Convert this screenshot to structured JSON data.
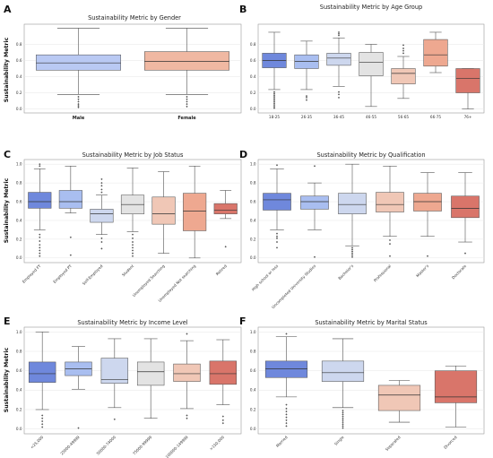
{
  "chart_data": [
    {
      "type": "box",
      "letter": "A",
      "title": "Sustainability Metric by Gender",
      "ylabel": "Sustainability Metric",
      "ylim": [
        0,
        1
      ],
      "yticks": [
        "0.0",
        "0.2",
        "0.4",
        "0.6",
        "0.8"
      ],
      "ytick_values": [
        0,
        0.2,
        0.4,
        0.6,
        0.8
      ],
      "label_style": "bold",
      "categories": [
        "Male",
        "Female"
      ],
      "boxes": [
        {
          "min": 0.18,
          "q1": 0.48,
          "median": 0.57,
          "q3": 0.67,
          "max": 1.0,
          "outliers": [
            0.02,
            0.04,
            0.06,
            0.09,
            0.12,
            0.15
          ],
          "color": "#b9c9f3"
        },
        {
          "min": 0.18,
          "q1": 0.48,
          "median": 0.59,
          "q3": 0.71,
          "max": 1.0,
          "outliers": [
            0.03,
            0.06,
            0.09,
            0.12,
            0.15
          ],
          "color": "#f0b8a2"
        }
      ]
    },
    {
      "type": "box",
      "letter": "B",
      "title": "Sustainability Metric by Age Group",
      "ylabel": "",
      "ylim": [
        0,
        1
      ],
      "yticks": [
        "0.0",
        "0.2",
        "0.4",
        "0.6",
        "0.8"
      ],
      "ytick_values": [
        0,
        0.2,
        0.4,
        0.6,
        0.8
      ],
      "label_style": "plain",
      "categories": [
        "18-25",
        "26-35",
        "36-45",
        "46-55",
        "56-65",
        "66-75",
        "76+"
      ],
      "boxes": [
        {
          "min": 0.24,
          "q1": 0.51,
          "median": 0.6,
          "q3": 0.69,
          "max": 0.95,
          "outliers": [
            0.01,
            0.03,
            0.05,
            0.07,
            0.09,
            0.11,
            0.13,
            0.15,
            0.17,
            0.19,
            0.21
          ],
          "color": "#6f88dc"
        },
        {
          "min": 0.24,
          "q1": 0.5,
          "median": 0.59,
          "q3": 0.67,
          "max": 0.84,
          "outliers": [
            0.11,
            0.14,
            0.16
          ],
          "color": "#a9bef0"
        },
        {
          "min": 0.28,
          "q1": 0.54,
          "median": 0.63,
          "q3": 0.69,
          "max": 0.88,
          "outliers": [
            0.14,
            0.18,
            0.21,
            0.91,
            0.93,
            0.95
          ],
          "color": "#cdd7ee"
        },
        {
          "min": 0.03,
          "q1": 0.41,
          "median": 0.58,
          "q3": 0.7,
          "max": 0.8,
          "outliers": [],
          "color": "#e3e3e3"
        },
        {
          "min": 0.13,
          "q1": 0.31,
          "median": 0.44,
          "q3": 0.5,
          "max": 0.65,
          "outliers": [
            0.69,
            0.72,
            0.75,
            0.79
          ],
          "color": "#f0c7b6"
        },
        {
          "min": 0.45,
          "q1": 0.53,
          "median": 0.67,
          "q3": 0.86,
          "max": 0.95,
          "outliers": [],
          "color": "#eea890"
        },
        {
          "min": 0.0,
          "q1": 0.2,
          "median": 0.38,
          "q3": 0.5,
          "max": 0.5,
          "outliers": [],
          "color": "#d9756a"
        }
      ]
    },
    {
      "type": "box",
      "letter": "C",
      "title": "Sustainability Metric by Job Status",
      "ylabel": "Sustainability Metric",
      "ylim": [
        0,
        1
      ],
      "yticks": [
        "0.0",
        "0.2",
        "0.4",
        "0.6",
        "0.8",
        "1.0"
      ],
      "ytick_values": [
        0,
        0.2,
        0.4,
        0.6,
        0.8,
        1.0
      ],
      "label_style": "rotated",
      "categories": [
        "Employed FT",
        "Employed PT",
        "Self-Employed",
        "Student",
        "Unemployed Searching",
        "Unemployed Not searching",
        "Retired"
      ],
      "boxes": [
        {
          "min": 0.3,
          "q1": 0.53,
          "median": 0.6,
          "q3": 0.7,
          "max": 0.95,
          "outliers": [
            0.02,
            0.05,
            0.08,
            0.11,
            0.14,
            0.18,
            0.22,
            0.25,
            0.98,
            1.0
          ],
          "color": "#6f88dc"
        },
        {
          "min": 0.48,
          "q1": 0.53,
          "median": 0.6,
          "q3": 0.72,
          "max": 0.98,
          "outliers": [
            0.03,
            0.22
          ],
          "color": "#a9bef0"
        },
        {
          "min": 0.25,
          "q1": 0.38,
          "median": 0.47,
          "q3": 0.52,
          "max": 0.67,
          "outliers": [
            0.1,
            0.17,
            0.21,
            0.7,
            0.73,
            0.77,
            0.8,
            0.84
          ],
          "color": "#cdd7ee"
        },
        {
          "min": 0.28,
          "q1": 0.47,
          "median": 0.57,
          "q3": 0.67,
          "max": 0.96,
          "outliers": [
            0.02,
            0.05,
            0.08,
            0.11,
            0.14,
            0.17,
            0.21,
            0.25
          ],
          "color": "#e3e3e3"
        },
        {
          "min": 0.05,
          "q1": 0.36,
          "median": 0.47,
          "q3": 0.65,
          "max": 0.92,
          "outliers": [],
          "color": "#f0c7b6"
        },
        {
          "min": 0.0,
          "q1": 0.29,
          "median": 0.5,
          "q3": 0.69,
          "max": 0.98,
          "outliers": [],
          "color": "#eea890"
        },
        {
          "min": 0.42,
          "q1": 0.47,
          "median": 0.51,
          "q3": 0.58,
          "max": 0.72,
          "outliers": [
            0.12
          ],
          "color": "#d9756a"
        }
      ]
    },
    {
      "type": "box",
      "letter": "D",
      "title": "Sustainability Metric by Qualification",
      "ylabel": "",
      "ylim": [
        0,
        1
      ],
      "yticks": [
        "0.0",
        "0.2",
        "0.4",
        "0.6",
        "0.8",
        "1.0"
      ],
      "ytick_values": [
        0,
        0.2,
        0.4,
        0.6,
        0.8,
        1.0
      ],
      "label_style": "rotated",
      "categories": [
        "High school or less",
        "Uncompleted University Studies",
        "Bachelor's",
        "Professional",
        "Master's",
        "Doctorate"
      ],
      "boxes": [
        {
          "min": 0.3,
          "q1": 0.51,
          "median": 0.62,
          "q3": 0.69,
          "max": 0.95,
          "outliers": [
            0.11,
            0.17,
            0.21,
            0.23,
            0.26,
            0.99
          ],
          "color": "#6f88dc"
        },
        {
          "min": 0.3,
          "q1": 0.52,
          "median": 0.6,
          "q3": 0.66,
          "max": 0.8,
          "outliers": [
            0.01,
            0.98
          ],
          "color": "#a9bef0"
        },
        {
          "min": 0.13,
          "q1": 0.47,
          "median": 0.57,
          "q3": 0.69,
          "max": 1.0,
          "outliers": [
            0.01,
            0.03,
            0.05,
            0.07,
            0.09,
            0.11
          ],
          "color": "#cdd7ee"
        },
        {
          "min": 0.23,
          "q1": 0.49,
          "median": 0.57,
          "q3": 0.7,
          "max": 0.98,
          "outliers": [
            0.02,
            0.15,
            0.19
          ],
          "color": "#f0c7b6"
        },
        {
          "min": 0.23,
          "q1": 0.5,
          "median": 0.6,
          "q3": 0.69,
          "max": 0.91,
          "outliers": [
            0.02
          ],
          "color": "#eea890"
        },
        {
          "min": 0.17,
          "q1": 0.43,
          "median": 0.53,
          "q3": 0.66,
          "max": 0.91,
          "outliers": [
            0.05
          ],
          "color": "#d9756a"
        }
      ]
    },
    {
      "type": "box",
      "letter": "E",
      "title": "Sustainability Metric by Income Level",
      "ylabel": "Sustainability Metric",
      "ylim": [
        0,
        1
      ],
      "yticks": [
        "0.0",
        "0.2",
        "0.4",
        "0.6",
        "0.8",
        "1.0"
      ],
      "ytick_values": [
        0,
        0.2,
        0.4,
        0.6,
        0.8,
        1.0
      ],
      "label_style": "rotated",
      "categories": [
        "<25,000",
        "25000-49999",
        "50000-74000",
        "75000-99999",
        "100000-149999",
        ">150,000"
      ],
      "boxes": [
        {
          "min": 0.2,
          "q1": 0.48,
          "median": 0.57,
          "q3": 0.69,
          "max": 1.0,
          "outliers": [
            0.02,
            0.05,
            0.08,
            0.11,
            0.14
          ],
          "color": "#6f88dc"
        },
        {
          "min": 0.41,
          "q1": 0.55,
          "median": 0.62,
          "q3": 0.69,
          "max": 0.85,
          "outliers": [
            0.01
          ],
          "color": "#a9bef0"
        },
        {
          "min": 0.22,
          "q1": 0.47,
          "median": 0.51,
          "q3": 0.73,
          "max": 0.93,
          "outliers": [
            0.1
          ],
          "color": "#cdd7ee"
        },
        {
          "min": 0.11,
          "q1": 0.45,
          "median": 0.59,
          "q3": 0.69,
          "max": 0.93,
          "outliers": [],
          "color": "#e3e3e3"
        },
        {
          "min": 0.21,
          "q1": 0.49,
          "median": 0.57,
          "q3": 0.67,
          "max": 0.91,
          "outliers": [
            0.11,
            0.14,
            0.98
          ],
          "color": "#f0c7b6"
        },
        {
          "min": 0.25,
          "q1": 0.46,
          "median": 0.57,
          "q3": 0.7,
          "max": 0.92,
          "outliers": [
            0.06,
            0.09,
            0.13
          ],
          "color": "#d9756a"
        }
      ]
    },
    {
      "type": "box",
      "letter": "F",
      "title": "Sustainability Metric by Marital Status",
      "ylabel": "",
      "ylim": [
        0,
        1
      ],
      "yticks": [
        "0.0",
        "0.2",
        "0.4",
        "0.6",
        "0.8",
        "1.0"
      ],
      "ytick_values": [
        0,
        0.2,
        0.4,
        0.6,
        0.8,
        1.0
      ],
      "label_style": "rotated",
      "categories": [
        "Married",
        "Single",
        "Separated",
        "Divorced"
      ],
      "boxes": [
        {
          "min": 0.33,
          "q1": 0.53,
          "median": 0.62,
          "q3": 0.7,
          "max": 0.95,
          "outliers": [
            0.03,
            0.06,
            0.09,
            0.12,
            0.15,
            0.18,
            0.21,
            0.25,
            0.98
          ],
          "color": "#6f88dc"
        },
        {
          "min": 0.22,
          "q1": 0.49,
          "median": 0.58,
          "q3": 0.7,
          "max": 0.93,
          "outliers": [
            0.01,
            0.03,
            0.05,
            0.07,
            0.09,
            0.11,
            0.13,
            0.15,
            0.17,
            0.19
          ],
          "color": "#cdd7ee"
        },
        {
          "min": 0.07,
          "q1": 0.19,
          "median": 0.35,
          "q3": 0.45,
          "max": 0.5,
          "outliers": [],
          "color": "#f0c7b6"
        },
        {
          "min": 0.02,
          "q1": 0.27,
          "median": 0.33,
          "q3": 0.6,
          "max": 0.65,
          "outliers": [],
          "color": "#d9756a"
        }
      ]
    }
  ]
}
